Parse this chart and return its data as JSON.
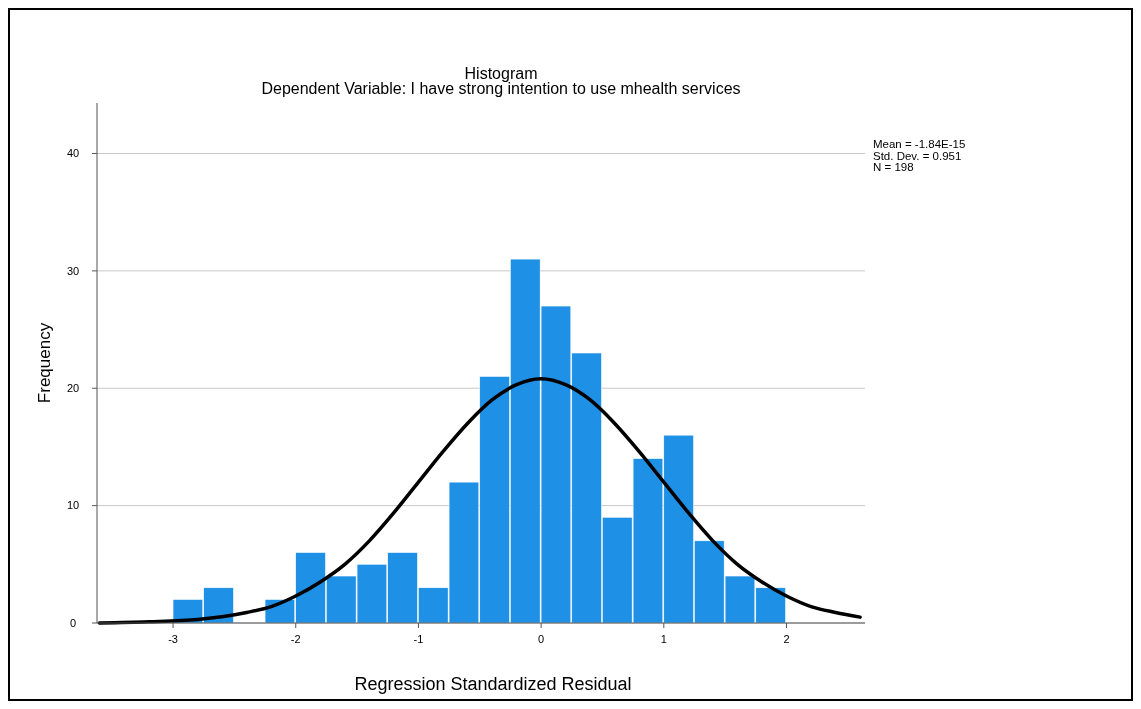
{
  "chart_data": {
    "type": "histogram",
    "title": "Histogram",
    "subtitle": "Dependent Variable: I have strong intention to use mhealth services",
    "xlabel": "Regression Standardized Residual",
    "ylabel": "Frequency",
    "bins": [
      -3,
      -2.75,
      -2.5,
      -2.25,
      -2,
      -1.75,
      -1.5,
      -1.25,
      -1,
      -0.75,
      -0.5,
      -0.25,
      0,
      0.25,
      0.5,
      0.75,
      1,
      1.25,
      1.5,
      1.75,
      2
    ],
    "values": [
      2,
      3,
      0,
      2,
      6,
      4,
      5,
      6,
      3,
      12,
      21,
      31,
      27,
      23,
      9,
      14,
      16,
      7,
      4,
      3
    ],
    "color": "#1e90e6",
    "series": [
      {
        "type": "line",
        "color": "#000000",
        "x": [
          -3.6,
          -3.2,
          -2.8,
          -2.4,
          -2.2,
          -2.0,
          -1.8,
          -1.6,
          -1.4,
          -1.2,
          -1.0,
          -0.8,
          -0.6,
          -0.4,
          -0.2,
          0,
          0.2,
          0.4,
          0.6,
          0.8,
          1.0,
          1.2,
          1.4,
          1.6,
          1.8,
          2.0,
          2.2,
          2.4,
          2.6
        ],
        "values": [
          0.0,
          0.1,
          0.3,
          0.9,
          1.4,
          2.3,
          3.5,
          5.0,
          7.0,
          9.4,
          12.0,
          14.6,
          17.0,
          19.0,
          20.3,
          20.8,
          20.3,
          19.0,
          17.0,
          14.6,
          12.0,
          9.4,
          7.0,
          5.0,
          3.5,
          2.3,
          1.4,
          0.9,
          0.5
        ]
      }
    ],
    "xlim": [
      -3.62,
      2.64
    ],
    "ylim": [
      0,
      44.3
    ],
    "xticks": [
      -3,
      -2,
      -1,
      0,
      1,
      2
    ],
    "yticks": [
      0,
      10,
      20,
      30,
      40
    ],
    "grid": "y",
    "annotations": [
      "Mean = -1.84E-15",
      "Std. Dev. = 0.951",
      "N = 198"
    ]
  }
}
